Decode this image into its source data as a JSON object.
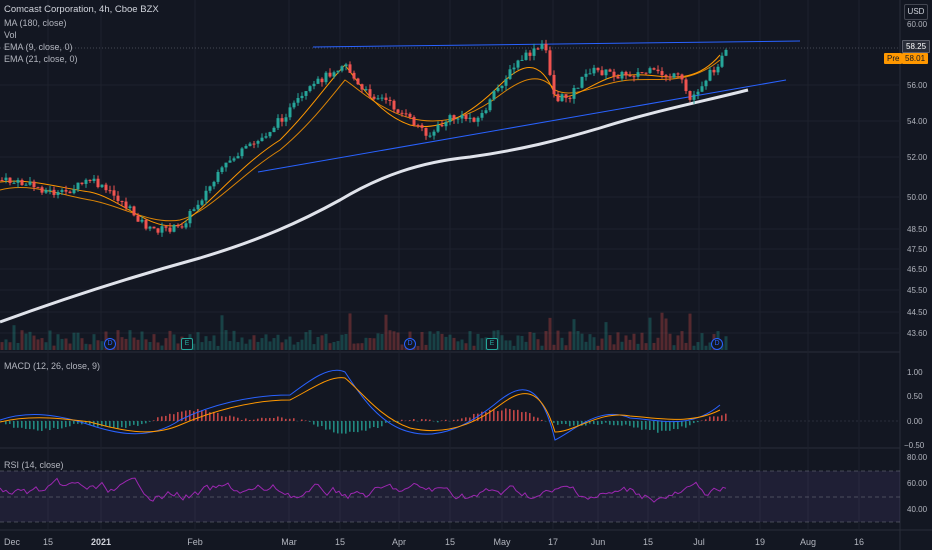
{
  "header": {
    "title": "Comcast Corporation, 4h, Cboe BZX",
    "indicators": [
      "MA (180, close)",
      "Vol",
      "EMA (9, close, 0)",
      "EMA (21, close, 0)"
    ]
  },
  "currency": "USD",
  "price_axis": {
    "ticks": [
      "60.00",
      "56.00",
      "54.00",
      "52.00",
      "50.00",
      "48.50",
      "47.50",
      "46.50",
      "45.50",
      "44.50",
      "43.60"
    ],
    "last_price": "58.25",
    "pre_label": "Pre",
    "pre_price": "58.01"
  },
  "macd": {
    "label": "MACD (12, 26, close, 9)",
    "ticks": [
      "1.00",
      "0.50",
      "0.00",
      "−0.50"
    ]
  },
  "rsi": {
    "label": "RSI (14, close)",
    "ticks": [
      "80.00",
      "60.00",
      "40.00"
    ]
  },
  "time_axis": [
    "Dec",
    "15",
    "2021",
    "Feb",
    "Mar",
    "15",
    "Apr",
    "15",
    "May",
    "17",
    "Jun",
    "15",
    "Jul",
    "19",
    "Aug",
    "16"
  ],
  "events": [
    "D",
    "E",
    "D",
    "E",
    "D"
  ],
  "colors": {
    "up": "#26a69a",
    "down": "#ef5350",
    "ema9": "#ff9800",
    "ma": "#e0e3eb",
    "trend": "#2962ff",
    "rsi": "#9c27b0"
  }
}
